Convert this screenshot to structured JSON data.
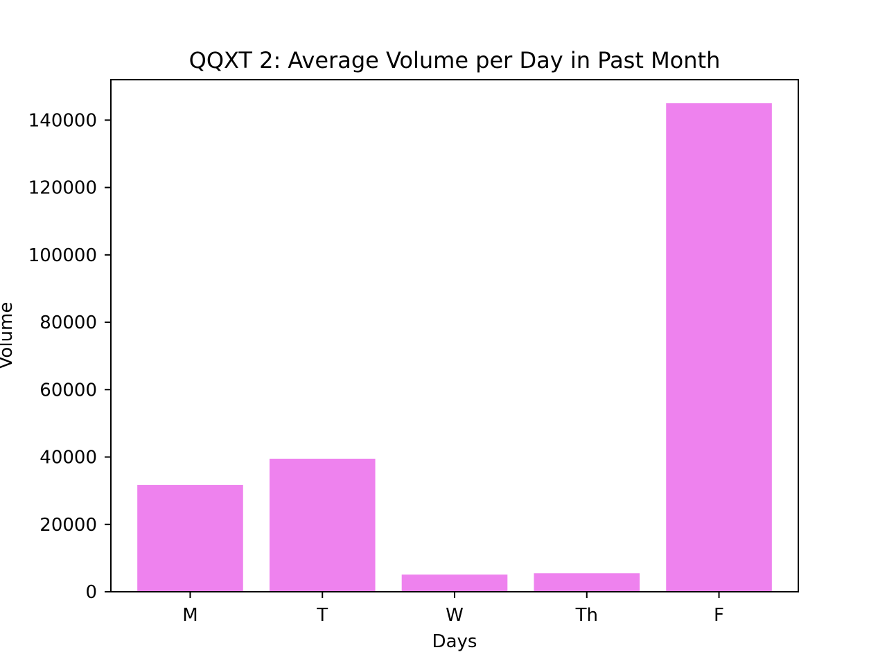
{
  "chart_data": {
    "type": "bar",
    "title": "QQXT 2: Average Volume per Day in Past Month",
    "xlabel": "Days",
    "ylabel": "Volume",
    "categories": [
      "M",
      "T",
      "W",
      "Th",
      "F"
    ],
    "values": [
      31700,
      39500,
      5100,
      5500,
      145000
    ],
    "ylim": [
      0,
      152000
    ],
    "yticks": [
      0,
      20000,
      40000,
      60000,
      80000,
      100000,
      120000,
      140000
    ],
    "ytick_labels": [
      "0",
      "20000",
      "40000",
      "60000",
      "80000",
      "100000",
      "120000",
      "140000"
    ],
    "bar_color": "#ee82ee",
    "grid": false,
    "legend": "none"
  }
}
